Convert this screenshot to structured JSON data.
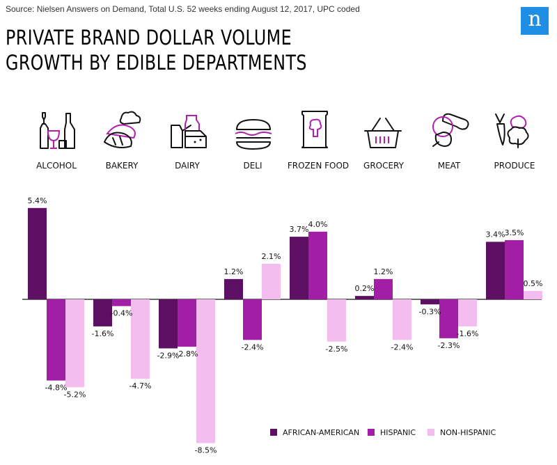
{
  "source": "Source: Nielsen Answers on Demand, Total U.S. 52 weeks ending August 12, 2017, UPC coded",
  "logo": "n",
  "colors": {
    "african_american": "#5c0f63",
    "hispanic": "#a21ea6",
    "non_hispanic": "#f3bdf0"
  },
  "icons": [
    "wine-bottles-icon",
    "bread-icon",
    "milk-carton-icon",
    "sandwich-icon",
    "frozen-food-bag-icon",
    "shopping-basket-icon",
    "meat-sausage-icon",
    "produce-vegetables-icon"
  ],
  "chart_data": {
    "type": "bar",
    "title": "PRIVATE BRAND DOLLAR VOLUME GROWTH BY EDIBLE DEPARTMENTS",
    "categories": [
      "ALCOHOL",
      "BAKERY",
      "DAIRY",
      "DELI",
      "FROZEN FOOD",
      "GROCERY",
      "MEAT",
      "PRODUCE"
    ],
    "series": [
      {
        "name": "AFRICAN-AMERICAN",
        "values": [
          5.4,
          -1.6,
          -2.9,
          1.2,
          3.7,
          0.2,
          -0.3,
          3.4
        ]
      },
      {
        "name": "HISPANIC",
        "values": [
          -4.8,
          -0.4,
          -2.8,
          -2.4,
          4.0,
          1.2,
          -2.3,
          3.5
        ]
      },
      {
        "name": "NON-HISPANIC",
        "values": [
          -5.2,
          -4.7,
          -8.5,
          2.1,
          -2.5,
          -2.4,
          -1.6,
          0.5
        ]
      }
    ],
    "labels": [
      [
        "5.4%",
        "-1.6%",
        "-2.9%",
        "1.2%",
        "3.7%",
        "0.2%",
        "-0.3%",
        "3.4%"
      ],
      [
        "-4.8%",
        "-0.4%",
        "-2.8%",
        "-2.4%",
        "4.0%",
        "1.2%",
        "-2.3%",
        "3.5%"
      ],
      [
        "-5.2%",
        "-4.7%",
        "-8.5%",
        "2.1%",
        "-2.5%",
        "-2.4%",
        "-1.6%",
        "0.5%"
      ]
    ],
    "xlabel": "",
    "ylabel": "",
    "ylim": [
      -8.5,
      5.4
    ],
    "grid": false,
    "legend_position": "bottom-right"
  }
}
